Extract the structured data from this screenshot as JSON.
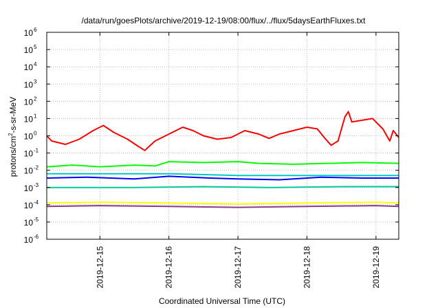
{
  "chart_data": {
    "type": "line",
    "title": "/data/run/goesPlots/archive/2019-12-19/08:00/flux/../flux/5daysEarthFluxes.txt",
    "xlabel": "Coordinated Universal Time (UTC)",
    "ylabel": {
      "base": "protons/cm",
      "sup": "2",
      "rest": "-s-sr-MeV"
    },
    "x_unit": "days since 2019-12-14 00:00 UTC",
    "x_range": [
      0.23,
      5.33
    ],
    "y_scale": "log",
    "y_range_log10": [
      -6,
      6
    ],
    "y_ticks": [
      {
        "base": "10",
        "exp": "-6",
        "log": -6
      },
      {
        "base": "10",
        "exp": "-5",
        "log": -5
      },
      {
        "base": "10",
        "exp": "-4",
        "log": -4
      },
      {
        "base": "10",
        "exp": "-3",
        "log": -3
      },
      {
        "base": "10",
        "exp": "-2",
        "log": -2
      },
      {
        "base": "10",
        "exp": "-1",
        "log": -1
      },
      {
        "base": "10",
        "exp": "0",
        "log": 0
      },
      {
        "base": "10",
        "exp": "1",
        "log": 1
      },
      {
        "base": "10",
        "exp": "2",
        "log": 2
      },
      {
        "base": "10",
        "exp": "3",
        "log": 3
      },
      {
        "base": "10",
        "exp": "4",
        "log": 4
      },
      {
        "base": "10",
        "exp": "5",
        "log": 5
      },
      {
        "base": "10",
        "exp": "6",
        "log": 6
      }
    ],
    "x_ticks": [
      {
        "label": "2019-12-15",
        "x": 1.0
      },
      {
        "label": "2019-12-16",
        "x": 2.0
      },
      {
        "label": "2019-12-17",
        "x": 3.0
      },
      {
        "label": "2019-12-18",
        "x": 4.0
      },
      {
        "label": "2019-12-19",
        "x": 5.0
      }
    ],
    "grid": true,
    "series": [
      {
        "color": "#ff0000",
        "points": [
          [
            0.23,
            0.0
          ],
          [
            0.3,
            -0.3
          ],
          [
            0.5,
            -0.5
          ],
          [
            0.7,
            -0.2
          ],
          [
            0.9,
            0.3
          ],
          [
            1.05,
            0.6
          ],
          [
            1.2,
            0.2
          ],
          [
            1.4,
            -0.2
          ],
          [
            1.55,
            -0.6
          ],
          [
            1.65,
            -0.85
          ],
          [
            1.8,
            -0.3
          ],
          [
            2.0,
            0.1
          ],
          [
            2.2,
            0.5
          ],
          [
            2.35,
            0.3
          ],
          [
            2.5,
            0.0
          ],
          [
            2.7,
            -0.2
          ],
          [
            2.9,
            -0.1
          ],
          [
            3.1,
            0.3
          ],
          [
            3.3,
            0.1
          ],
          [
            3.45,
            -0.15
          ],
          [
            3.6,
            0.1
          ],
          [
            3.8,
            0.3
          ],
          [
            4.0,
            0.5
          ],
          [
            4.15,
            0.4
          ],
          [
            4.25,
            -0.1
          ],
          [
            4.35,
            -0.55
          ],
          [
            4.45,
            -0.3
          ],
          [
            4.55,
            1.1
          ],
          [
            4.6,
            1.4
          ],
          [
            4.65,
            0.8
          ],
          [
            4.8,
            0.9
          ],
          [
            4.95,
            1.0
          ],
          [
            5.1,
            0.4
          ],
          [
            5.2,
            -0.3
          ],
          [
            5.25,
            0.3
          ],
          [
            5.33,
            -0.1
          ]
        ]
      },
      {
        "color": "#00ff00",
        "points": [
          [
            0.23,
            -1.8
          ],
          [
            0.6,
            -1.7
          ],
          [
            1.0,
            -1.8
          ],
          [
            1.5,
            -1.7
          ],
          [
            1.8,
            -1.75
          ],
          [
            2.0,
            -1.5
          ],
          [
            2.5,
            -1.55
          ],
          [
            3.0,
            -1.5
          ],
          [
            3.3,
            -1.6
          ],
          [
            3.8,
            -1.65
          ],
          [
            4.3,
            -1.6
          ],
          [
            4.8,
            -1.55
          ],
          [
            5.33,
            -1.6
          ]
        ]
      },
      {
        "color": "#00c8c8",
        "points": [
          [
            0.23,
            -2.2
          ],
          [
            1.0,
            -2.2
          ],
          [
            2.0,
            -2.2
          ],
          [
            3.0,
            -2.3
          ],
          [
            4.0,
            -2.3
          ],
          [
            5.0,
            -2.3
          ],
          [
            5.33,
            -2.3
          ]
        ]
      },
      {
        "color": "#0000ff",
        "points": [
          [
            0.23,
            -2.45
          ],
          [
            0.8,
            -2.4
          ],
          [
            1.5,
            -2.5
          ],
          [
            2.0,
            -2.35
          ],
          [
            2.6,
            -2.45
          ],
          [
            3.0,
            -2.5
          ],
          [
            3.6,
            -2.55
          ],
          [
            4.2,
            -2.4
          ],
          [
            4.8,
            -2.45
          ],
          [
            5.33,
            -2.45
          ]
        ]
      },
      {
        "color": "#00c896",
        "points": [
          [
            0.23,
            -3.0
          ],
          [
            1.5,
            -3.0
          ],
          [
            2.5,
            -2.95
          ],
          [
            3.5,
            -3.0
          ],
          [
            4.5,
            -2.95
          ],
          [
            5.33,
            -2.95
          ]
        ]
      },
      {
        "color": "#ffff00",
        "points": [
          [
            0.23,
            -3.9
          ],
          [
            1.0,
            -3.85
          ],
          [
            2.0,
            -3.9
          ],
          [
            3.0,
            -3.95
          ],
          [
            4.0,
            -3.9
          ],
          [
            5.0,
            -3.85
          ],
          [
            5.33,
            -3.9
          ]
        ]
      },
      {
        "color": "#8b3a8b",
        "points": [
          [
            0.23,
            -4.1
          ],
          [
            1.0,
            -4.05
          ],
          [
            2.0,
            -4.1
          ],
          [
            3.0,
            -4.15
          ],
          [
            4.0,
            -4.1
          ],
          [
            5.0,
            -4.05
          ],
          [
            5.33,
            -4.1
          ]
        ]
      }
    ]
  }
}
